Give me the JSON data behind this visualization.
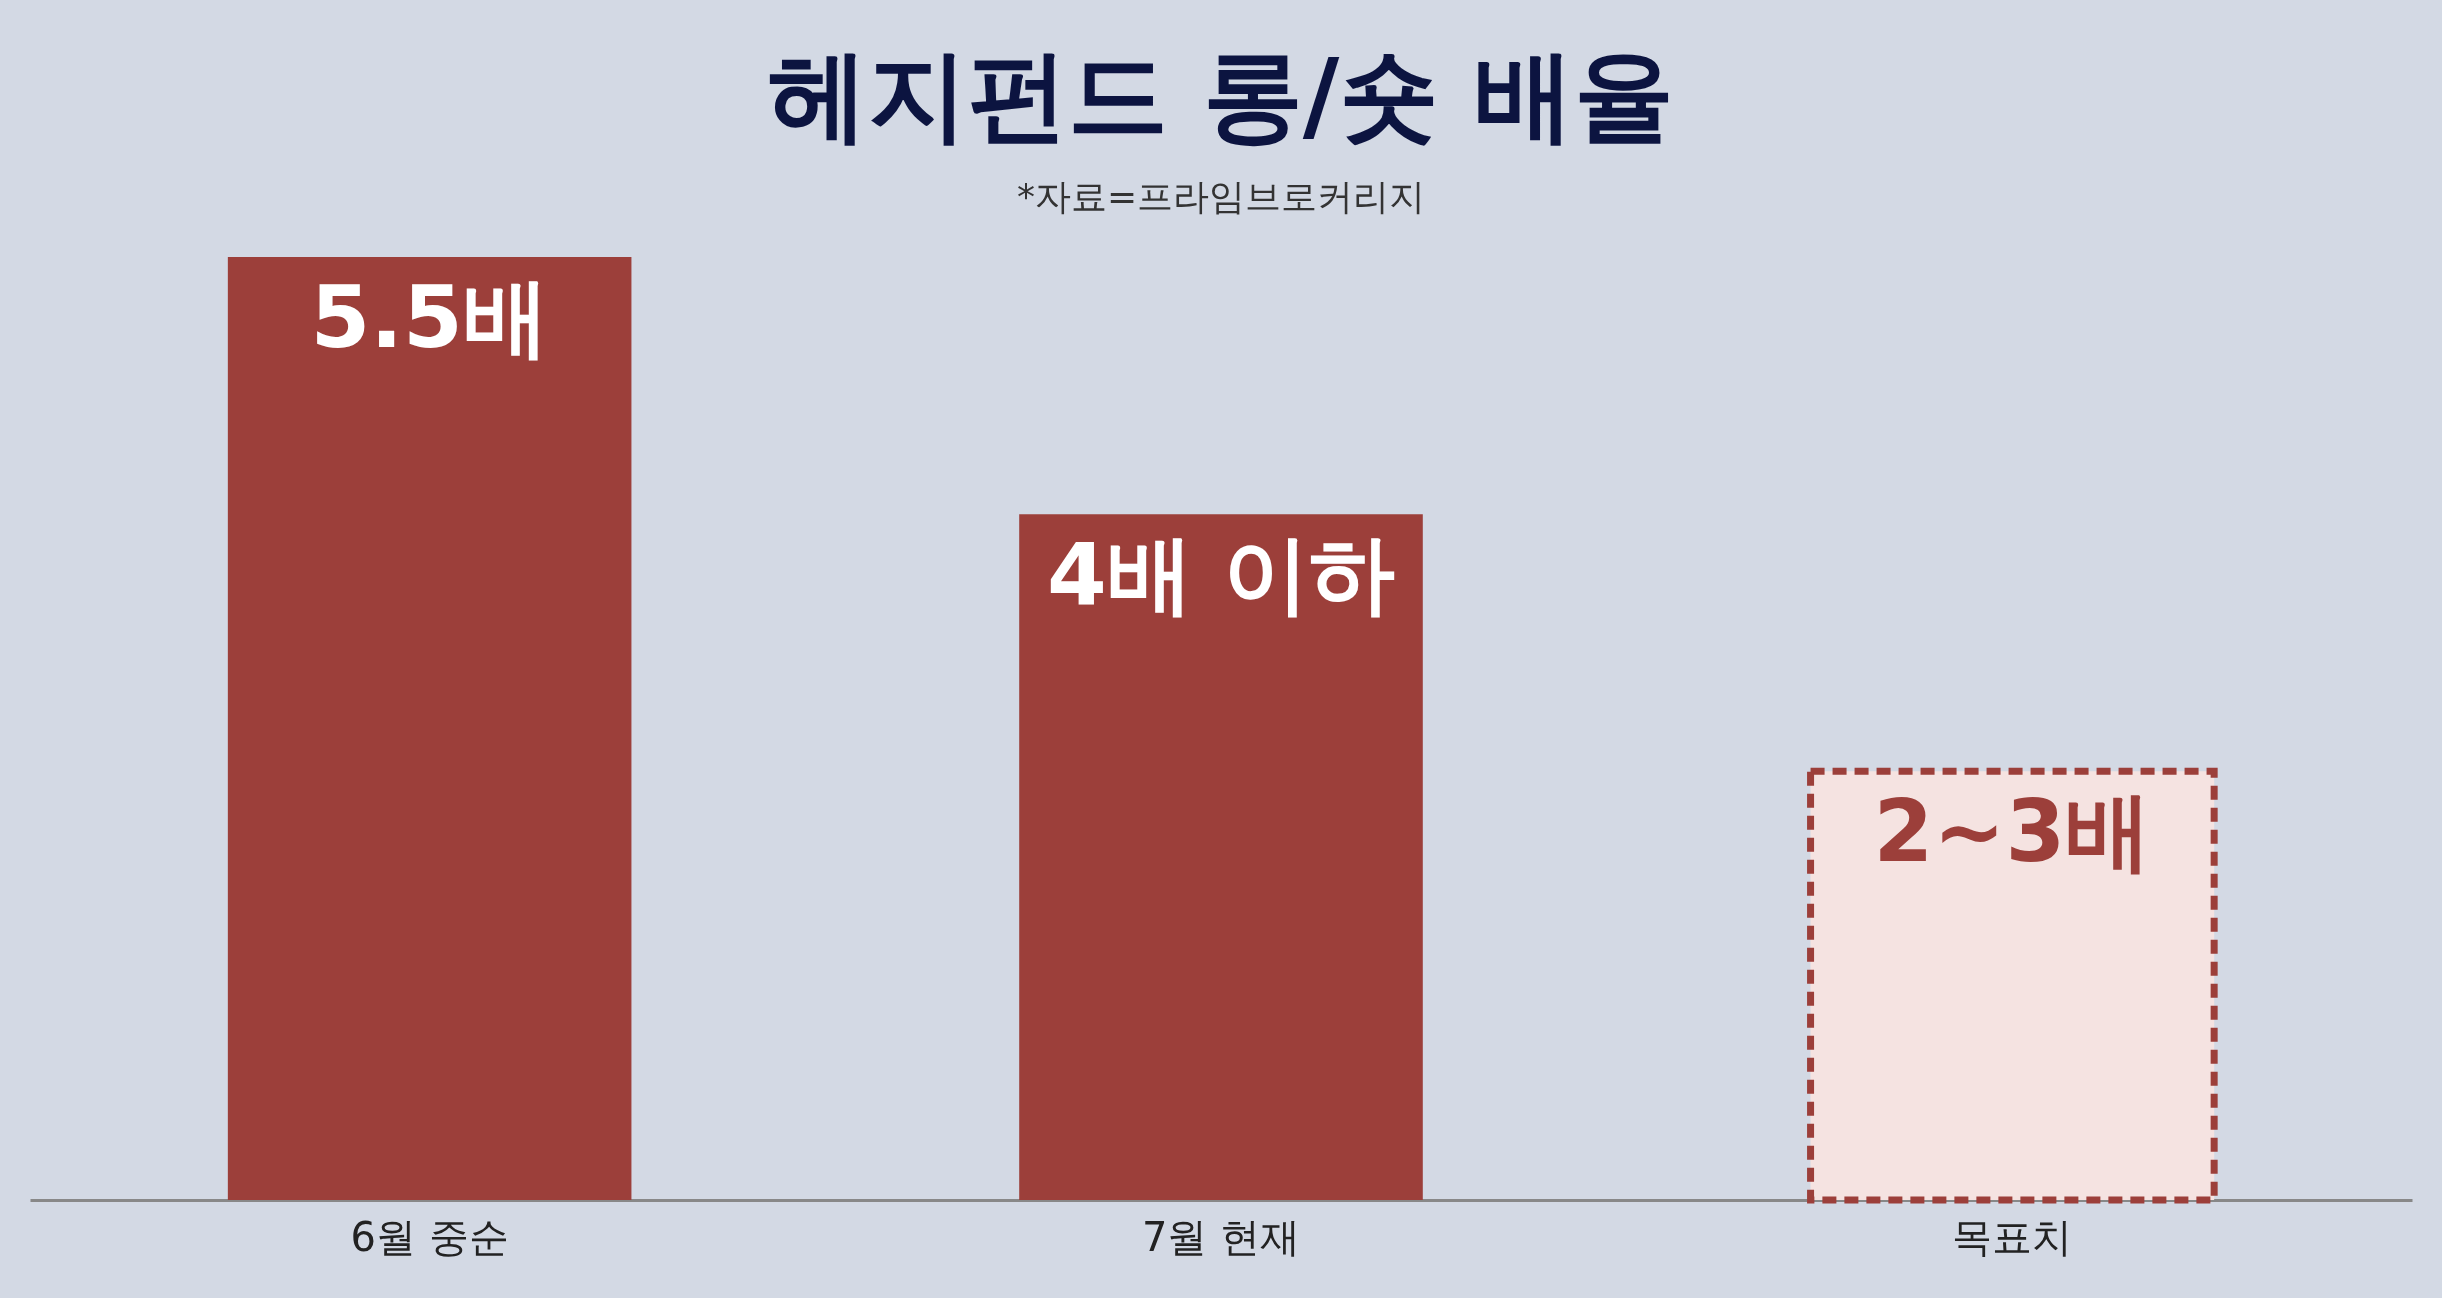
{
  "chart_data": {
    "type": "bar",
    "title": "헤지펀드 롱/숏 배율",
    "annotations": [
      "*자료=프라임브로커리지"
    ],
    "categories": [
      "6월 중순",
      "7월 현재",
      "목표치"
    ],
    "tick_labels": "x",
    "series": [
      {
        "color": "#9c3f3a",
        "values": [
          5.5,
          4,
          null
        ],
        "value_labels": [
          "5.5배",
          "4배 이하",
          null
        ]
      },
      {
        "color": "#f5e3e1",
        "line_style": "dashed",
        "values": [
          null,
          null,
          2.5
        ],
        "value_labels": [
          null,
          null,
          "2~3배"
        ]
      }
    ],
    "grid": false
  }
}
